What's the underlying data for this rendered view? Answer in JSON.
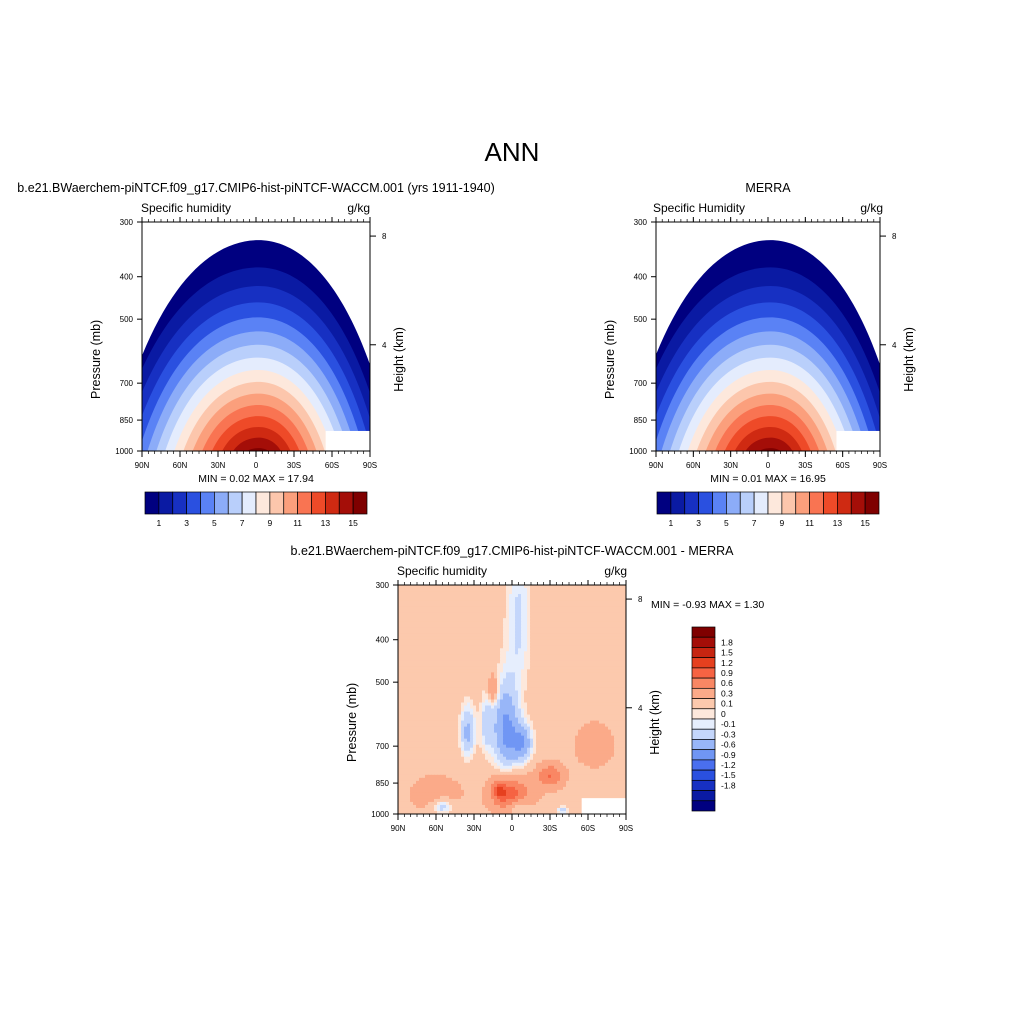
{
  "page": {
    "title": "ANN"
  },
  "colors": {
    "abs_scale": [
      "#000080",
      "#0a1aa3",
      "#1730c2",
      "#2a50e0",
      "#5a82f5",
      "#8cacf8",
      "#b9cffb",
      "#e4ecfd",
      "#fde8dc",
      "#fcc6ac",
      "#fb9f7c",
      "#f97452",
      "#ee4a28",
      "#cf2a12",
      "#a40e08",
      "#7f0000"
    ],
    "diff_scale": [
      "#000080",
      "#0a1aa3",
      "#1730c2",
      "#2a50e0",
      "#4a6fef",
      "#7096f4",
      "#98b6f8",
      "#c4d6fb",
      "#e6eefd",
      "#fde8dc",
      "#fcc9ad",
      "#fbaa89",
      "#f98764",
      "#f66343",
      "#e6401f",
      "#c62511",
      "#a40e08",
      "#7f0000"
    ]
  },
  "panels": {
    "left": {
      "title": "b.e21.BWaerchem-piNTCF.f09_g17.CMIP6-hist-piNTCF-WACCM.001 (yrs 1911-1940)",
      "left_label": "Specific humidity",
      "right_label": "g/kg",
      "stats": "MIN =   0.02  MAX =  17.94"
    },
    "right": {
      "title": "MERRA",
      "left_label": "Specific Humidity",
      "right_label": "g/kg",
      "stats": "MIN =   0.01  MAX =  16.95"
    },
    "bottom": {
      "title": "b.e21.BWaerchem-piNTCF.f09_g17.CMIP6-hist-piNTCF-WACCM.001 - MERRA",
      "left_label": "Specific humidity",
      "right_label": "g/kg",
      "stats": "MIN =  -0.93  MAX =   1.30"
    }
  },
  "chart_data": [
    {
      "type": "heatmap",
      "title": "b.e21.BWaerchem-piNTCF.f09_g17.CMIP6-hist-piNTCF-WACCM.001 (yrs 1911-1940)",
      "ylabel": "Pressure (mb)",
      "y2label": "Height (km)",
      "x_ticks": [
        "90N",
        "60N",
        "30N",
        "0",
        "30S",
        "60S",
        "90S"
      ],
      "y_ticks": [
        "300",
        "400",
        "500",
        "700",
        "850",
        "1000"
      ],
      "y2_ticks": [
        "8",
        "4"
      ],
      "colorbar_labels": [
        "1",
        "3",
        "5",
        "7",
        "9",
        "11",
        "13",
        "15"
      ],
      "min": 0.02,
      "max": 17.94,
      "peak_lat": -2,
      "peak_value": 17.94
    },
    {
      "type": "heatmap",
      "title": "MERRA",
      "ylabel": "Pressure (mb)",
      "y2label": "Height (km)",
      "x_ticks": [
        "90N",
        "60N",
        "30N",
        "0",
        "30S",
        "60S",
        "90S"
      ],
      "y_ticks": [
        "300",
        "400",
        "500",
        "700",
        "850",
        "1000"
      ],
      "y2_ticks": [
        "8",
        "4"
      ],
      "colorbar_labels": [
        "1",
        "3",
        "5",
        "7",
        "9",
        "11",
        "13",
        "15"
      ],
      "min": 0.01,
      "max": 16.95,
      "peak_lat": -2,
      "peak_value": 16.95
    },
    {
      "type": "heatmap",
      "title": "b.e21.BWaerchem-piNTCF.f09_g17.CMIP6-hist-piNTCF-WACCM.001 - MERRA",
      "ylabel": "Pressure (mb)",
      "y2label": "Height (km)",
      "x_ticks": [
        "90N",
        "60N",
        "30N",
        "0",
        "30S",
        "60S",
        "90S"
      ],
      "y_ticks": [
        "300",
        "400",
        "500",
        "700",
        "850",
        "1000"
      ],
      "y2_ticks": [
        "8",
        "4"
      ],
      "colorbar_labels": [
        "1.8",
        "1.5",
        "1.2",
        "0.9",
        "0.6",
        "0.3",
        "0.1",
        "0",
        "-0.1",
        "-0.3",
        "-0.6",
        "-0.9",
        "-1.2",
        "-1.5",
        "-1.8"
      ],
      "min": -0.93,
      "max": 1.3
    }
  ]
}
